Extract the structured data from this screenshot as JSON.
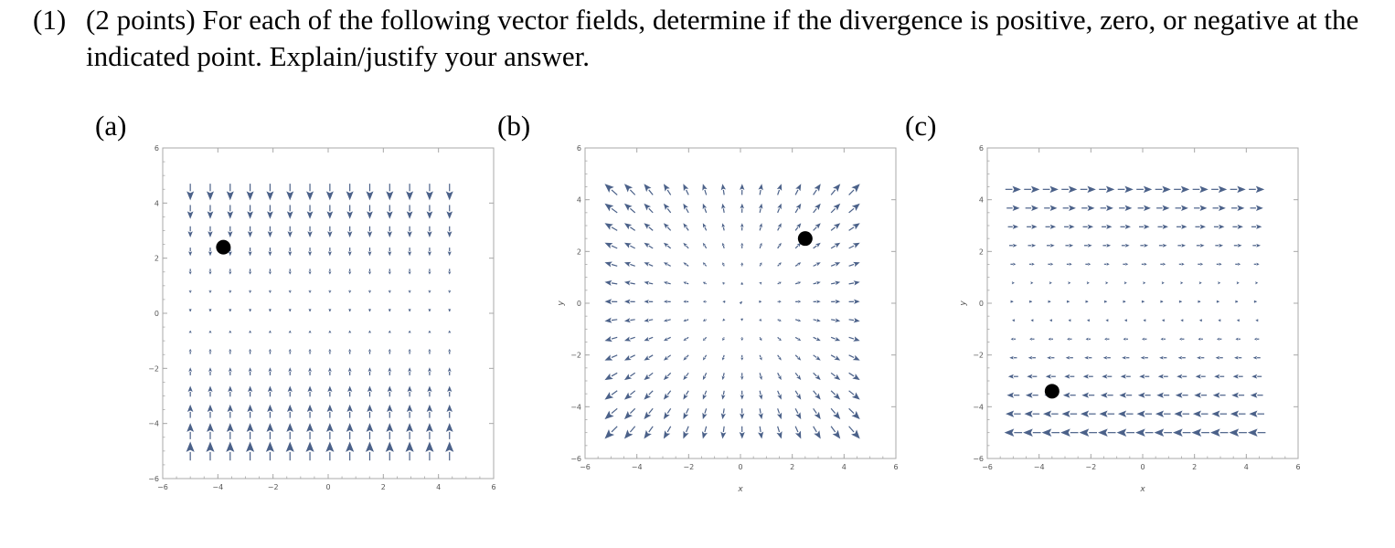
{
  "problem": {
    "number": "(1)",
    "text": "(2 points) For each of the following vector fields, determine if the divergence is positive, zero, or negative at the indicated point. Explain/justify your answer."
  },
  "colors": {
    "arrow": "#4b6189",
    "point": "#000000",
    "frame": "#a8a8a8",
    "tick_label": "#555555"
  },
  "plots": [
    {
      "label": "(a)",
      "xlabel": "",
      "ylabel": "",
      "field": "F = (0, -y)",
      "point": [
        -3.8,
        2.4
      ],
      "chart_data": {
        "type": "vector_field",
        "xlim": [
          -6,
          6
        ],
        "ylim": [
          -6,
          6
        ],
        "ticks": [
          -6,
          -4,
          -2,
          0,
          2,
          4,
          6
        ],
        "grid": false
      }
    },
    {
      "label": "(b)",
      "xlabel": "x",
      "ylabel": "y",
      "field": "F = (x, y)",
      "point": [
        2.5,
        2.5
      ],
      "chart_data": {
        "type": "vector_field",
        "xlim": [
          -6,
          6
        ],
        "ylim": [
          -6,
          6
        ],
        "ticks": [
          -6,
          -4,
          -2,
          0,
          2,
          4,
          6
        ],
        "grid": false
      }
    },
    {
      "label": "(c)",
      "xlabel": "x",
      "ylabel": "y",
      "field": "F = (y, 0)",
      "point": [
        -3.5,
        -3.4
      ],
      "chart_data": {
        "type": "vector_field",
        "xlim": [
          -6,
          6
        ],
        "ylim": [
          -6,
          6
        ],
        "ticks": [
          -6,
          -4,
          -2,
          0,
          2,
          4,
          6
        ],
        "grid": false
      }
    }
  ]
}
